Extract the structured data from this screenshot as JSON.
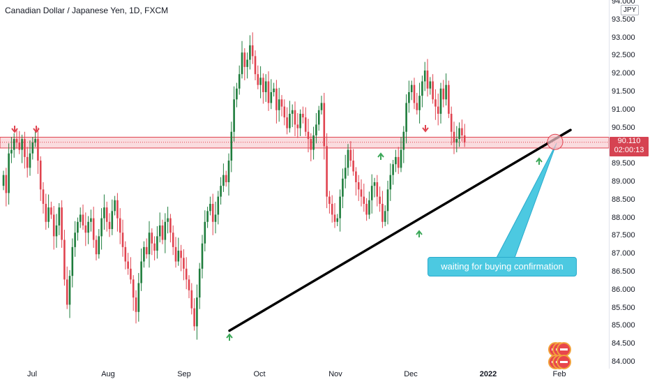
{
  "header": {
    "title": "Canadian Dollar / Japanese Yen, 1D, FXCM"
  },
  "currency_badge": "JPY",
  "current_price": {
    "price": "90.110",
    "countdown": "02:00:13"
  },
  "annotation": {
    "text": "waiting for buying confirmation"
  },
  "price_axis": {
    "labels": [
      "94.000",
      "93.500",
      "93.000",
      "92.500",
      "92.000",
      "91.500",
      "91.000",
      "90.500",
      "89.500",
      "89.000",
      "88.500",
      "88.000",
      "87.500",
      "87.000",
      "86.500",
      "86.000",
      "85.500",
      "85.000",
      "84.500",
      "84.000"
    ]
  },
  "time_axis": {
    "labels": [
      "Jul",
      "Aug",
      "Sep",
      "Oct",
      "Nov",
      "Dec",
      "2022",
      "Feb"
    ]
  },
  "colors": {
    "up": "#1e7d3c",
    "down": "#e0434f",
    "zone_fill": "#f7c5ca",
    "zone_border": "#e0434f",
    "trendline": "#000000",
    "callout": "#4cc9e1",
    "arrow_up": "#3aa757",
    "arrow_down": "#e0434f"
  },
  "chart_data": {
    "type": "candlestick",
    "title": "Canadian Dollar / Japanese Yen, 1D, FXCM",
    "ylim": [
      84.0,
      94.0
    ],
    "yticks": [
      84.0,
      84.5,
      85.0,
      85.5,
      86.0,
      86.5,
      87.0,
      87.5,
      88.0,
      88.5,
      89.0,
      89.5,
      90.0,
      90.5,
      91.0,
      91.5,
      92.0,
      92.5,
      93.0,
      93.5,
      94.0
    ],
    "xticks": [
      "Jul",
      "Aug",
      "Sep",
      "Oct",
      "Nov",
      "Dec",
      "2022",
      "Feb"
    ],
    "resistance_zone": [
      89.95,
      90.25
    ],
    "current_price": 90.11,
    "trendline": {
      "from": [
        "Sep",
        84.88
      ],
      "to": [
        "Feb",
        90.45
      ]
    },
    "close_series": [
      89.2,
      88.7,
      89.8,
      89.9,
      90.2,
      90.1,
      89.9,
      90.2,
      89.7,
      89.4,
      89.8,
      90.1,
      90.2,
      89.6,
      88.8,
      88.4,
      87.9,
      88.3,
      88.1,
      87.5,
      87.8,
      88.3,
      87.4,
      86.3,
      85.6,
      86.4,
      87.2,
      87.6,
      87.9,
      88.1,
      87.8,
      87.6,
      87.9,
      88.0,
      87.4,
      87.0,
      87.5,
      88.0,
      88.3,
      87.9,
      87.7,
      88.2,
      88.5,
      88.0,
      87.6,
      87.2,
      86.8,
      86.6,
      86.3,
      85.8,
      85.4,
      86.2,
      86.8,
      87.2,
      87.0,
      87.6,
      87.3,
      87.1,
      87.5,
      87.8,
      87.4,
      87.9,
      88.0,
      87.6,
      87.2,
      86.8,
      87.1,
      86.9,
      86.6,
      86.3,
      86.0,
      85.5,
      85.0,
      85.8,
      86.6,
      87.3,
      87.9,
      88.2,
      88.4,
      87.9,
      88.1,
      88.6,
      88.9,
      89.2,
      89.0,
      89.6,
      90.4,
      91.3,
      91.6,
      92.0,
      92.6,
      92.2,
      92.4,
      92.8,
      92.5,
      92.0,
      91.7,
      91.9,
      91.5,
      91.8,
      91.2,
      91.5,
      91.6,
      91.0,
      91.3,
      91.1,
      90.8,
      90.5,
      90.9,
      91.0,
      90.6,
      90.5,
      90.9,
      90.8,
      90.4,
      90.2,
      89.9,
      90.3,
      90.6,
      91.0,
      91.2,
      90.0,
      88.6,
      88.4,
      88.1,
      87.9,
      88.0,
      88.6,
      89.1,
      89.4,
      89.9,
      89.6,
      89.3,
      89.0,
      88.8,
      88.6,
      88.4,
      88.1,
      88.5,
      88.9,
      89.0,
      88.6,
      88.4,
      87.9,
      88.2,
      88.8,
      89.2,
      89.5,
      89.7,
      89.4,
      89.9,
      90.4,
      91.2,
      91.5,
      91.7,
      91.2,
      91.0,
      91.4,
      91.8,
      92.1,
      91.6,
      91.8,
      91.3,
      91.1,
      90.9,
      91.6,
      91.3,
      91.7,
      90.9,
      90.4,
      90.1,
      90.2,
      90.5,
      90.3,
      90.1
    ]
  }
}
